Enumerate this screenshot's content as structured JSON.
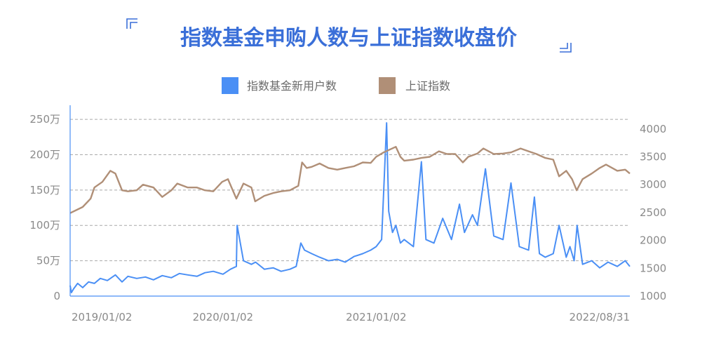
{
  "chart_data": {
    "type": "line",
    "title": "指数基金申购人数与上证指数收盘价",
    "legend": {
      "placement": "top-center",
      "entries": [
        {
          "name": "指数基金新用户数",
          "color": "#4a8ff5"
        },
        {
          "name": "上证指数",
          "color": "#b08f77"
        }
      ]
    },
    "x_axis": {
      "type": "date",
      "range": [
        "2019/01/02",
        "2022/08/31"
      ],
      "tick_labels": [
        "2019/01/02",
        "2020/01/02",
        "2021/01/02",
        "2022/08/31"
      ]
    },
    "y_left": {
      "range": [
        0,
        2600000
      ],
      "tick_values": [
        0,
        500000,
        1000000,
        1500000,
        2000000,
        2500000
      ],
      "tick_labels": [
        "0",
        "50万",
        "100万",
        "150万",
        "200万",
        "250万"
      ]
    },
    "y_right": {
      "range": [
        1000,
        4300
      ],
      "tick_values": [
        1000,
        1500,
        2000,
        2500,
        3000,
        3500,
        4000
      ],
      "tick_labels": [
        "1000",
        "1500",
        "2000",
        "2500",
        "3000",
        "3500",
        "4000"
      ]
    },
    "grid": {
      "horizontal": true,
      "vertical": false
    },
    "series": [
      {
        "name": "指数基金新用户数",
        "axis": "left",
        "color": "#4a8ff5",
        "x": [
          "2019/01/02",
          "2019/01/05",
          "2019/01/10",
          "2019/01/20",
          "2019/02/01",
          "2019/02/15",
          "2019/03/01",
          "2019/03/15",
          "2019/04/01",
          "2019/04/20",
          "2019/05/06",
          "2019/05/20",
          "2019/06/10",
          "2019/07/01",
          "2019/07/20",
          "2019/08/10",
          "2019/09/01",
          "2019/09/20",
          "2019/10/10",
          "2019/11/01",
          "2019/11/20",
          "2019/12/10",
          "2020/01/02",
          "2020/01/20",
          "2020/02/03",
          "2020/02/05",
          "2020/02/20",
          "2020/03/10",
          "2020/03/20",
          "2020/04/10",
          "2020/05/01",
          "2020/05/20",
          "2020/06/10",
          "2020/06/25",
          "2020/07/01",
          "2020/07/06",
          "2020/07/15",
          "2020/08/01",
          "2020/08/20",
          "2020/09/10",
          "2020/10/01",
          "2020/10/20",
          "2020/11/10",
          "2020/12/01",
          "2020/12/20",
          "2021/01/02",
          "2021/01/15",
          "2021/01/27",
          "2021/02/01",
          "2021/02/10",
          "2021/02/18",
          "2021/03/01",
          "2021/03/10",
          "2021/04/01",
          "2021/04/20",
          "2021/05/01",
          "2021/05/20",
          "2021/06/10",
          "2021/07/01",
          "2021/07/20",
          "2021/08/01",
          "2021/08/20",
          "2021/09/01",
          "2021/09/20",
          "2021/10/10",
          "2021/11/01",
          "2021/11/20",
          "2021/12/10",
          "2022/01/01",
          "2022/01/15",
          "2022/01/27",
          "2022/02/10",
          "2022/03/01",
          "2022/03/15",
          "2022/04/01",
          "2022/04/10",
          "2022/04/20",
          "2022/04/27",
          "2022/05/10",
          "2022/06/01",
          "2022/06/20",
          "2022/07/10",
          "2022/08/01",
          "2022/08/20",
          "2022/08/31"
        ],
        "values": [
          150000,
          50000,
          100000,
          180000,
          120000,
          200000,
          180000,
          250000,
          220000,
          300000,
          200000,
          280000,
          250000,
          270000,
          230000,
          290000,
          260000,
          320000,
          300000,
          280000,
          330000,
          350000,
          310000,
          380000,
          420000,
          1000000,
          500000,
          450000,
          480000,
          380000,
          400000,
          350000,
          380000,
          420000,
          600000,
          750000,
          650000,
          600000,
          550000,
          500000,
          520000,
          480000,
          560000,
          600000,
          650000,
          700000,
          800000,
          2450000,
          1200000,
          900000,
          1000000,
          750000,
          800000,
          700000,
          1900000,
          800000,
          750000,
          1100000,
          800000,
          1300000,
          900000,
          1150000,
          1000000,
          1800000,
          850000,
          800000,
          1600000,
          700000,
          650000,
          1400000,
          600000,
          550000,
          600000,
          1000000,
          550000,
          700000,
          500000,
          1000000,
          450000,
          500000,
          400000,
          480000,
          420000,
          500000,
          420000
        ]
      },
      {
        "name": "上证指数",
        "axis": "right",
        "color": "#b08f77",
        "x": [
          "2019/01/02",
          "2019/02/01",
          "2019/02/20",
          "2019/03/01",
          "2019/03/20",
          "2019/04/08",
          "2019/04/20",
          "2019/05/06",
          "2019/05/20",
          "2019/06/10",
          "2019/06/25",
          "2019/07/20",
          "2019/08/10",
          "2019/09/01",
          "2019/09/15",
          "2019/10/10",
          "2019/11/01",
          "2019/11/20",
          "2019/12/10",
          "2019/12/31",
          "2020/01/14",
          "2020/02/03",
          "2020/02/20",
          "2020/03/10",
          "2020/03/19",
          "2020/04/10",
          "2020/05/01",
          "2020/05/20",
          "2020/06/10",
          "2020/06/30",
          "2020/07/09",
          "2020/07/20",
          "2020/08/01",
          "2020/08/20",
          "2020/09/10",
          "2020/10/01",
          "2020/10/20",
          "2020/11/10",
          "2020/12/01",
          "2020/12/20",
          "2021/01/02",
          "2021/01/20",
          "2021/02/18",
          "2021/03/01",
          "2021/03/10",
          "2021/04/01",
          "2021/04/20",
          "2021/05/10",
          "2021/06/01",
          "2021/06/20",
          "2021/07/10",
          "2021/07/28",
          "2021/08/10",
          "2021/09/01",
          "2021/09/15",
          "2021/10/10",
          "2021/11/01",
          "2021/11/20",
          "2021/12/13",
          "2022/01/01",
          "2022/01/20",
          "2022/02/10",
          "2022/03/01",
          "2022/03/15",
          "2022/04/01",
          "2022/04/15",
          "2022/04/26",
          "2022/05/10",
          "2022/06/01",
          "2022/06/20",
          "2022/07/05",
          "2022/07/20",
          "2022/08/01",
          "2022/08/20",
          "2022/08/31"
        ],
        "values": [
          2490,
          2600,
          2750,
          2950,
          3050,
          3250,
          3200,
          2900,
          2880,
          2900,
          3000,
          2950,
          2780,
          2900,
          3020,
          2950,
          2950,
          2900,
          2880,
          3050,
          3100,
          2750,
          3020,
          2950,
          2700,
          2800,
          2850,
          2880,
          2900,
          2980,
          3400,
          3300,
          3320,
          3380,
          3300,
          3270,
          3300,
          3330,
          3400,
          3390,
          3500,
          3580,
          3680,
          3500,
          3430,
          3450,
          3480,
          3500,
          3600,
          3550,
          3550,
          3400,
          3500,
          3560,
          3650,
          3550,
          3560,
          3580,
          3650,
          3600,
          3550,
          3480,
          3450,
          3150,
          3250,
          3100,
          2900,
          3100,
          3200,
          3300,
          3360,
          3300,
          3250,
          3270,
          3200
        ]
      }
    ]
  }
}
